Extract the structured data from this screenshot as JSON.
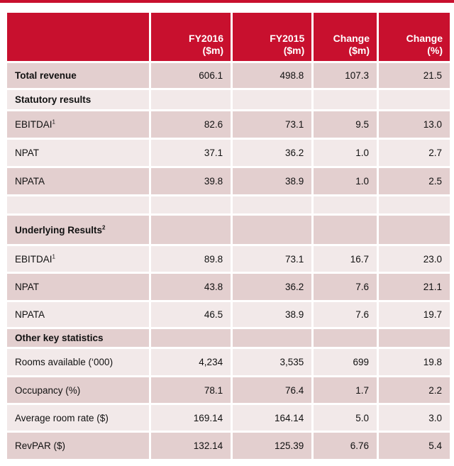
{
  "colors": {
    "header_bg": "#c8102e",
    "row_dark": "#e3cfcf",
    "row_light": "#f2e9e9"
  },
  "header": [
    {
      "line1": "",
      "line2": ""
    },
    {
      "line1": "FY2016",
      "line2": "($m)"
    },
    {
      "line1": "FY2015",
      "line2": "($m)"
    },
    {
      "line1": "Change",
      "line2": "($m)"
    },
    {
      "line1": "Change",
      "line2": "(%)"
    }
  ],
  "rows": [
    {
      "label": "Total revenue",
      "sup": "",
      "values": [
        "606.1",
        "498.8",
        "107.3",
        "21.5"
      ]
    },
    {
      "label": "Statutory results",
      "sup": "",
      "values": [
        "",
        "",
        "",
        ""
      ]
    },
    {
      "label": "EBITDAI",
      "sup": "1",
      "values": [
        "82.6",
        "73.1",
        "9.5",
        "13.0"
      ]
    },
    {
      "label": "NPAT",
      "sup": "",
      "values": [
        "37.1",
        "36.2",
        "1.0",
        "2.7"
      ]
    },
    {
      "label": "NPATA",
      "sup": "",
      "values": [
        "39.8",
        "38.9",
        "1.0",
        "2.5"
      ]
    },
    {
      "label": "",
      "sup": "",
      "values": [
        "",
        "",
        "",
        ""
      ]
    },
    {
      "label": "Underlying Results",
      "sup": "2",
      "values": [
        "",
        "",
        "",
        ""
      ]
    },
    {
      "label": "EBITDAI",
      "sup": "1",
      "values": [
        "89.8",
        "73.1",
        "16.7",
        "23.0"
      ]
    },
    {
      "label": "NPAT",
      "sup": "",
      "values": [
        "43.8",
        "36.2",
        "7.6",
        "21.1"
      ]
    },
    {
      "label": "NPATA",
      "sup": "",
      "values": [
        "46.5",
        "38.9",
        "7.6",
        "19.7"
      ]
    },
    {
      "label": "Other key statistics",
      "sup": "",
      "values": [
        "",
        "",
        "",
        ""
      ]
    },
    {
      "label": "Rooms available (‘000)",
      "sup": "",
      "values": [
        "4,234",
        "3,535",
        "699",
        "19.8"
      ]
    },
    {
      "label": "Occupancy (%)",
      "sup": "",
      "values": [
        "78.1",
        "76.4",
        "1.7",
        "2.2"
      ]
    },
    {
      "label": "Average room rate ($)",
      "sup": "",
      "values": [
        "169.14",
        "164.14",
        "5.0",
        "3.0"
      ]
    },
    {
      "label": "RevPAR ($)",
      "sup": "",
      "values": [
        "132.14",
        "125.39",
        "6.76",
        "5.4"
      ]
    }
  ]
}
